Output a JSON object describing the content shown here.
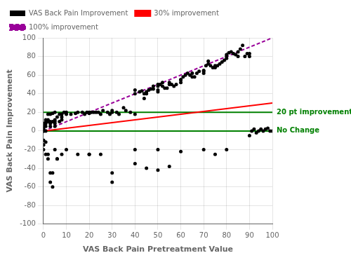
{
  "chart_data": {
    "type": "scatter",
    "x_label": "VAS Back Pain Pretreatment Value",
    "y_label": "VAS Back Pain Improvement",
    "xlim": [
      0,
      100
    ],
    "ylim": [
      -100,
      100
    ],
    "xticks": [
      0,
      10,
      20,
      30,
      40,
      50,
      60,
      70,
      80,
      90,
      100
    ],
    "yticks": [
      -100,
      -80,
      -60,
      -40,
      -20,
      0,
      20,
      40,
      60,
      80,
      100
    ],
    "grid": true,
    "legend": "upper left",
    "annotations": [
      {
        "text": "20 pt improvement",
        "y": 20,
        "color": "#008000"
      },
      {
        "text": "No Change",
        "y": 0,
        "color": "#008000"
      }
    ],
    "series": [
      {
        "name": "30% improvement",
        "type": "line",
        "color": "#FF0000",
        "line_style": "solid",
        "x": [
          0,
          100
        ],
        "values": [
          0,
          30
        ]
      },
      {
        "name": "VAS Back Pain Improvement",
        "type": "scatter",
        "color": "#000000",
        "marker": "circle",
        "x": [
          0,
          0,
          0,
          0,
          0,
          0,
          0,
          0,
          0,
          0,
          0,
          1,
          1,
          1,
          1,
          1,
          1,
          2,
          2,
          2,
          2,
          3,
          3,
          3,
          3,
          4,
          4,
          4,
          5,
          5,
          5,
          5,
          5,
          6,
          6,
          7,
          7,
          8,
          8,
          8,
          9,
          10,
          10,
          12,
          14,
          15,
          17,
          18,
          19,
          20,
          20,
          21,
          22,
          23,
          24,
          25,
          26,
          28,
          29,
          30,
          30,
          32,
          33,
          35,
          36,
          38,
          40,
          40,
          40,
          42,
          43,
          44,
          44,
          45,
          45,
          46,
          47,
          48,
          48,
          50,
          50,
          50,
          50,
          51,
          52,
          52,
          53,
          54,
          55,
          55,
          56,
          57,
          58,
          60,
          60,
          60,
          61,
          62,
          63,
          64,
          65,
          65,
          66,
          67,
          68,
          70,
          70,
          70,
          71,
          72,
          72,
          73,
          74,
          75,
          75,
          76,
          77,
          78,
          79,
          80,
          80,
          80,
          81,
          82,
          83,
          84,
          85,
          85,
          86,
          87,
          88,
          89,
          90,
          90,
          91,
          92,
          93,
          94,
          95,
          96,
          97,
          98,
          99,
          100,
          0,
          0,
          1,
          2,
          3,
          3,
          4,
          5,
          6,
          8,
          10,
          15,
          20,
          20,
          25,
          30,
          30,
          40,
          40,
          45,
          50,
          50,
          55,
          60,
          70,
          75,
          80,
          90
        ],
        "values": [
          0,
          2,
          4,
          5,
          3,
          8,
          -10,
          -15,
          -20,
          0,
          0,
          5,
          8,
          10,
          12,
          -12,
          0,
          10,
          12,
          18,
          -25,
          5,
          8,
          10,
          18,
          10,
          19,
          -45,
          5,
          8,
          10,
          12,
          20,
          15,
          -30,
          10,
          18,
          12,
          15,
          18,
          20,
          18,
          20,
          18,
          19,
          20,
          20,
          18,
          20,
          19,
          20,
          20,
          20,
          20,
          20,
          18,
          22,
          20,
          18,
          20,
          22,
          20,
          18,
          25,
          22,
          20,
          18,
          40,
          44,
          42,
          43,
          35,
          40,
          40,
          42,
          44,
          45,
          45,
          48,
          50,
          48,
          44,
          42,
          50,
          52,
          48,
          46,
          46,
          50,
          52,
          50,
          48,
          50,
          55,
          52,
          55,
          58,
          60,
          62,
          60,
          58,
          62,
          58,
          62,
          64,
          65,
          64,
          62,
          70,
          72,
          75,
          70,
          68,
          68,
          70,
          70,
          72,
          74,
          76,
          78,
          80,
          82,
          84,
          85,
          83,
          82,
          80,
          85,
          88,
          92,
          80,
          83,
          80,
          83,
          0,
          2,
          -2,
          0,
          2,
          0,
          2,
          3,
          0,
          0,
          -10,
          -15,
          -25,
          -30,
          -45,
          -55,
          -60,
          -20,
          -30,
          -25,
          -20,
          -25,
          -25,
          -25,
          -25,
          -45,
          -55,
          -20,
          -35,
          -40,
          -20,
          -42,
          -38,
          -22,
          -20,
          -25,
          -20,
          -5
        ]
      },
      {
        "name": "100% improvement",
        "type": "line",
        "color": "#990099",
        "line_style": "dashed",
        "x": [
          0,
          100
        ],
        "values": [
          0,
          100
        ]
      }
    ]
  }
}
